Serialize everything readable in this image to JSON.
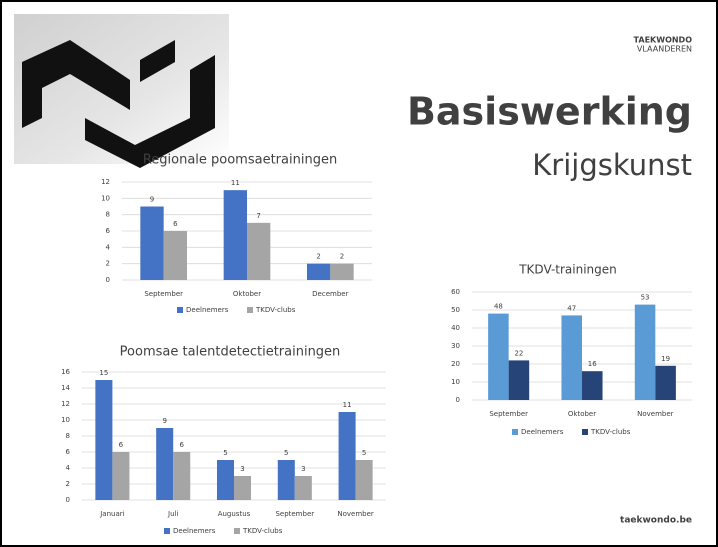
{
  "header": {
    "title": "Basiswerking",
    "subtitle": "Krijgskunst",
    "logo_line1": "TAEKWONDO",
    "logo_line2": "VLAANDEREN",
    "footer": "taekwondo.be"
  },
  "chart_data": [
    {
      "type": "bar",
      "title": "Regionale poomsaetrainingen",
      "categories": [
        "September",
        "Oktober",
        "December"
      ],
      "series": [
        {
          "name": "Deelnemers",
          "color": "#4472c4",
          "values": [
            9,
            11,
            2
          ]
        },
        {
          "name": "TKDV-clubs",
          "color": "#a5a5a5",
          "values": [
            6,
            7,
            2
          ]
        }
      ],
      "ylim": [
        0,
        12
      ],
      "yticks": [
        0,
        2,
        4,
        6,
        8,
        10,
        12
      ],
      "grid": true
    },
    {
      "type": "bar",
      "title": "Poomsae talentdetectietrainingen",
      "categories": [
        "Januari",
        "Juli",
        "Augustus",
        "September",
        "November"
      ],
      "series": [
        {
          "name": "Deelnemers",
          "color": "#4472c4",
          "values": [
            15,
            9,
            5,
            5,
            11
          ]
        },
        {
          "name": "TKDV-clubs",
          "color": "#a5a5a5",
          "values": [
            6,
            6,
            3,
            3,
            5
          ]
        }
      ],
      "ylim": [
        0,
        16
      ],
      "yticks": [
        0,
        2,
        4,
        6,
        8,
        10,
        12,
        14,
        16
      ],
      "grid": true
    },
    {
      "type": "bar",
      "title": "TKDV-trainingen",
      "categories": [
        "September",
        "Oktober",
        "November"
      ],
      "series": [
        {
          "name": "Deelnemers",
          "color": "#5b9bd5",
          "values": [
            48,
            47,
            53
          ]
        },
        {
          "name": "TKDV-clubs",
          "color": "#264478",
          "values": [
            22,
            16,
            19
          ]
        }
      ],
      "ylim": [
        0,
        60
      ],
      "yticks": [
        0,
        10,
        20,
        30,
        40,
        50,
        60
      ],
      "grid": true
    }
  ]
}
